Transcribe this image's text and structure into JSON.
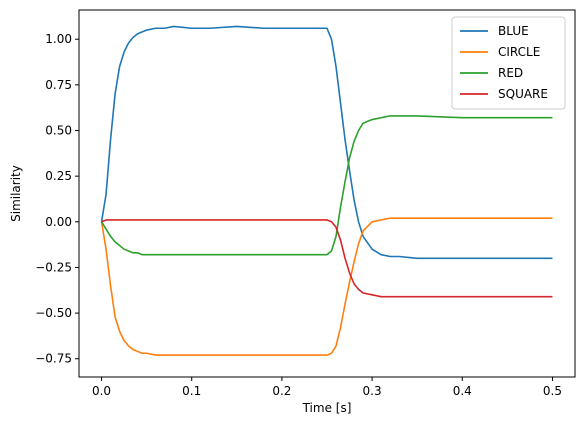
{
  "chart_data": {
    "type": "line",
    "xlabel": "Time [s]",
    "ylabel": "Similarity",
    "xlim": [
      -0.025,
      0.525
    ],
    "ylim": [
      -0.85,
      1.16
    ],
    "xticks": [
      0.0,
      0.1,
      0.2,
      0.3,
      0.4,
      0.5
    ],
    "xtick_labels": [
      "0.0",
      "0.1",
      "0.2",
      "0.3",
      "0.4",
      "0.5"
    ],
    "yticks": [
      -0.75,
      -0.5,
      -0.25,
      0.0,
      0.25,
      0.5,
      0.75,
      1.0
    ],
    "ytick_labels": [
      "−0.75",
      "−0.50",
      "−0.25",
      "0.00",
      "0.25",
      "0.50",
      "0.75",
      "1.00"
    ],
    "grid": false,
    "legend_position": "top-right",
    "x": [
      0.0,
      0.005,
      0.01,
      0.015,
      0.02,
      0.025,
      0.03,
      0.035,
      0.04,
      0.045,
      0.05,
      0.06,
      0.07,
      0.08,
      0.1,
      0.12,
      0.15,
      0.18,
      0.2,
      0.22,
      0.24,
      0.25,
      0.255,
      0.26,
      0.265,
      0.27,
      0.275,
      0.28,
      0.285,
      0.29,
      0.3,
      0.31,
      0.32,
      0.33,
      0.35,
      0.4,
      0.45,
      0.5
    ],
    "series": [
      {
        "name": "BLUE",
        "color": "#1f77b4",
        "values": [
          0.0,
          0.15,
          0.45,
          0.7,
          0.85,
          0.93,
          0.98,
          1.01,
          1.03,
          1.04,
          1.05,
          1.06,
          1.06,
          1.07,
          1.06,
          1.06,
          1.07,
          1.06,
          1.06,
          1.06,
          1.06,
          1.06,
          1.0,
          0.85,
          0.65,
          0.45,
          0.28,
          0.12,
          0.0,
          -0.08,
          -0.15,
          -0.18,
          -0.19,
          -0.19,
          -0.2,
          -0.2,
          -0.2,
          -0.2
        ]
      },
      {
        "name": "CIRCLE",
        "color": "#ff7f0e",
        "values": [
          0.0,
          -0.15,
          -0.35,
          -0.52,
          -0.6,
          -0.65,
          -0.68,
          -0.7,
          -0.71,
          -0.72,
          -0.72,
          -0.73,
          -0.73,
          -0.73,
          -0.73,
          -0.73,
          -0.73,
          -0.73,
          -0.73,
          -0.73,
          -0.73,
          -0.73,
          -0.72,
          -0.68,
          -0.58,
          -0.45,
          -0.33,
          -0.22,
          -0.12,
          -0.05,
          0.0,
          0.01,
          0.02,
          0.02,
          0.02,
          0.02,
          0.02,
          0.02
        ]
      },
      {
        "name": "RED",
        "color": "#2ca02c",
        "values": [
          0.0,
          -0.04,
          -0.08,
          -0.11,
          -0.13,
          -0.15,
          -0.16,
          -0.17,
          -0.17,
          -0.18,
          -0.18,
          -0.18,
          -0.18,
          -0.18,
          -0.18,
          -0.18,
          -0.18,
          -0.18,
          -0.18,
          -0.18,
          -0.18,
          -0.18,
          -0.16,
          -0.08,
          0.08,
          0.22,
          0.35,
          0.44,
          0.5,
          0.54,
          0.56,
          0.57,
          0.58,
          0.58,
          0.58,
          0.57,
          0.57,
          0.57
        ]
      },
      {
        "name": "SQUARE",
        "color": "#d62728",
        "values": [
          0.0,
          0.01,
          0.01,
          0.01,
          0.01,
          0.01,
          0.01,
          0.01,
          0.01,
          0.01,
          0.01,
          0.01,
          0.01,
          0.01,
          0.01,
          0.01,
          0.01,
          0.01,
          0.01,
          0.01,
          0.01,
          0.01,
          0.0,
          -0.03,
          -0.1,
          -0.2,
          -0.28,
          -0.34,
          -0.37,
          -0.39,
          -0.4,
          -0.41,
          -0.41,
          -0.41,
          -0.41,
          -0.41,
          -0.41,
          -0.41
        ]
      }
    ]
  }
}
